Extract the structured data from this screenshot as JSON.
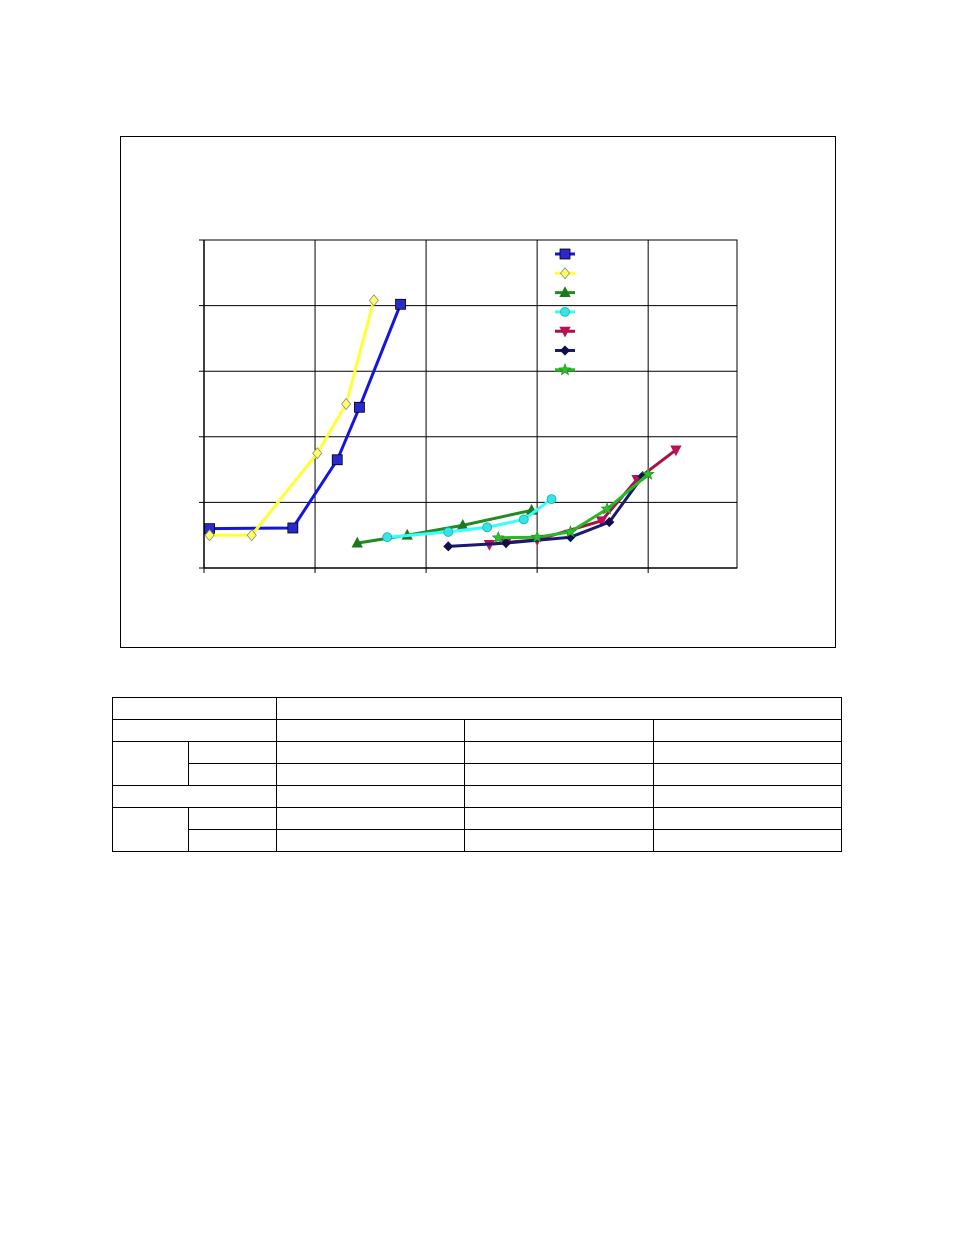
{
  "chart_data": {
    "type": "line",
    "title": "",
    "xlabel": "",
    "ylabel": "",
    "xlim": [
      0,
      4.8
    ],
    "ylim": [
      0,
      5
    ],
    "x_gridlines": [
      0,
      1,
      2,
      3,
      4
    ],
    "y_gridlines": [
      0,
      1,
      2,
      3,
      4,
      5
    ],
    "grid": true,
    "legend": "inside-top-right",
    "series": [
      {
        "marker": "square",
        "color": "#1515e0",
        "marker_color": "#2a2acc",
        "points": [
          [
            0.05,
            0.6
          ],
          [
            0.8,
            0.61
          ],
          [
            1.2,
            1.65
          ],
          [
            1.4,
            2.45
          ],
          [
            1.77,
            4.02
          ]
        ]
      },
      {
        "marker": "diamond",
        "color": "#ffff33",
        "marker_color": "#ffff66",
        "points": [
          [
            0.05,
            0.5
          ],
          [
            0.43,
            0.5
          ],
          [
            1.02,
            1.75
          ],
          [
            1.28,
            2.5
          ],
          [
            1.53,
            4.08
          ]
        ]
      },
      {
        "marker": "triangle",
        "color": "#228b22",
        "marker_color": "#1a7a1a",
        "points": [
          [
            1.38,
            0.38
          ],
          [
            1.83,
            0.5
          ],
          [
            2.33,
            0.65
          ],
          [
            2.95,
            0.88
          ]
        ]
      },
      {
        "marker": "circle",
        "color": "#33ffff",
        "marker_color": "#33e6e6",
        "points": [
          [
            1.65,
            0.47
          ],
          [
            2.2,
            0.55
          ],
          [
            2.55,
            0.62
          ],
          [
            2.88,
            0.74
          ],
          [
            3.13,
            1.05
          ]
        ]
      },
      {
        "marker": "triangle-down",
        "color": "#aa1144",
        "marker_color": "#bb1155",
        "points": [
          [
            2.57,
            0.36
          ],
          [
            2.72,
            0.39
          ],
          [
            3.0,
            0.43
          ],
          [
            3.58,
            0.72
          ],
          [
            3.9,
            1.35
          ],
          [
            4.25,
            1.8
          ]
        ]
      },
      {
        "marker": "small-diamond",
        "color": "#1a1a70",
        "marker_color": "#10104a",
        "points": [
          [
            2.2,
            0.33
          ],
          [
            2.72,
            0.38
          ],
          [
            3.3,
            0.47
          ],
          [
            3.65,
            0.7
          ],
          [
            3.95,
            1.4
          ]
        ]
      },
      {
        "marker": "star",
        "color": "#22bb22",
        "marker_color": "#33bb33",
        "points": [
          [
            2.65,
            0.46
          ],
          [
            3.0,
            0.47
          ],
          [
            3.3,
            0.55
          ],
          [
            3.63,
            0.9
          ],
          [
            4.0,
            1.43
          ]
        ]
      }
    ]
  },
  "table": {
    "rows": [
      [
        {
          "text": "",
          "colspan": 2
        },
        {
          "text": "",
          "colspan": 3
        }
      ],
      [
        {
          "text": "",
          "colspan": 2
        },
        {
          "text": ""
        },
        {
          "text": ""
        },
        {
          "text": ""
        }
      ],
      [
        {
          "text": "",
          "rowspan": 2
        },
        {
          "text": ""
        },
        {
          "text": ""
        },
        {
          "text": ""
        },
        {
          "text": ""
        }
      ],
      [
        {
          "text": ""
        },
        {
          "text": ""
        },
        {
          "text": ""
        },
        {
          "text": ""
        }
      ],
      [
        {
          "text": "",
          "colspan": 2
        },
        {
          "text": ""
        },
        {
          "text": ""
        },
        {
          "text": ""
        }
      ],
      [
        {
          "text": "",
          "rowspan": 2
        },
        {
          "text": ""
        },
        {
          "text": ""
        },
        {
          "text": ""
        },
        {
          "text": ""
        }
      ],
      [
        {
          "text": ""
        },
        {
          "text": ""
        },
        {
          "text": ""
        },
        {
          "text": ""
        }
      ]
    ]
  }
}
